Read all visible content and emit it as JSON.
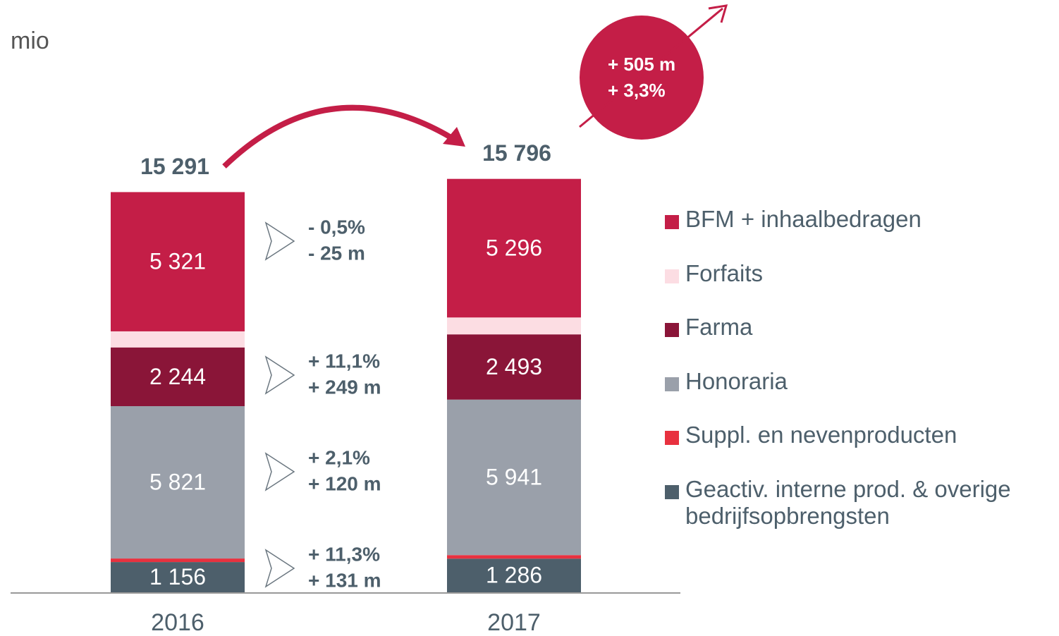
{
  "chart_data": {
    "type": "stacked-bar",
    "unit_label": "mio",
    "categories": [
      "2016",
      "2017"
    ],
    "ylim": [
      0,
      17000
    ],
    "series": [
      {
        "name": "Geactiv. interne prod. & overige bedrijfsopbrengsten",
        "color": "#4d5f6b",
        "values": [
          1156,
          1286
        ],
        "value_labels": [
          "1 156",
          "1 286"
        ]
      },
      {
        "name": "Suppl. en nevenproducten",
        "color": "#e8313f",
        "values": [
          135,
          135
        ]
      },
      {
        "name": "Honoraria",
        "color": "#9aa0aa",
        "values": [
          5821,
          5941
        ],
        "value_labels": [
          "5 821",
          "5 941"
        ]
      },
      {
        "name": "Farma",
        "color": "#8a1538",
        "values": [
          2244,
          2493
        ],
        "value_labels": [
          "2 244",
          "2 493"
        ]
      },
      {
        "name": "Forfaits",
        "color": "#fcdde3",
        "values": [
          614,
          645
        ]
      },
      {
        "name": "BFM + inhaalbedragen",
        "color": "#c41e47",
        "values": [
          5321,
          5296
        ],
        "value_labels": [
          "5 321",
          "5 296"
        ]
      }
    ],
    "totals": [
      15291,
      15796
    ],
    "total_labels": [
      "15 291",
      "15 796"
    ],
    "changes": [
      {
        "lines": [
          "- 0,5%",
          "- 25 m"
        ]
      },
      {
        "lines": [
          "+ 11,1%",
          "+ 249 m"
        ]
      },
      {
        "lines": [
          "+ 2,1%",
          "+ 120 m"
        ]
      },
      {
        "lines": [
          "+ 11,3%",
          "+ 131 m"
        ]
      }
    ],
    "total_change": [
      "+ 505 m",
      "+ 3,3%"
    ]
  }
}
